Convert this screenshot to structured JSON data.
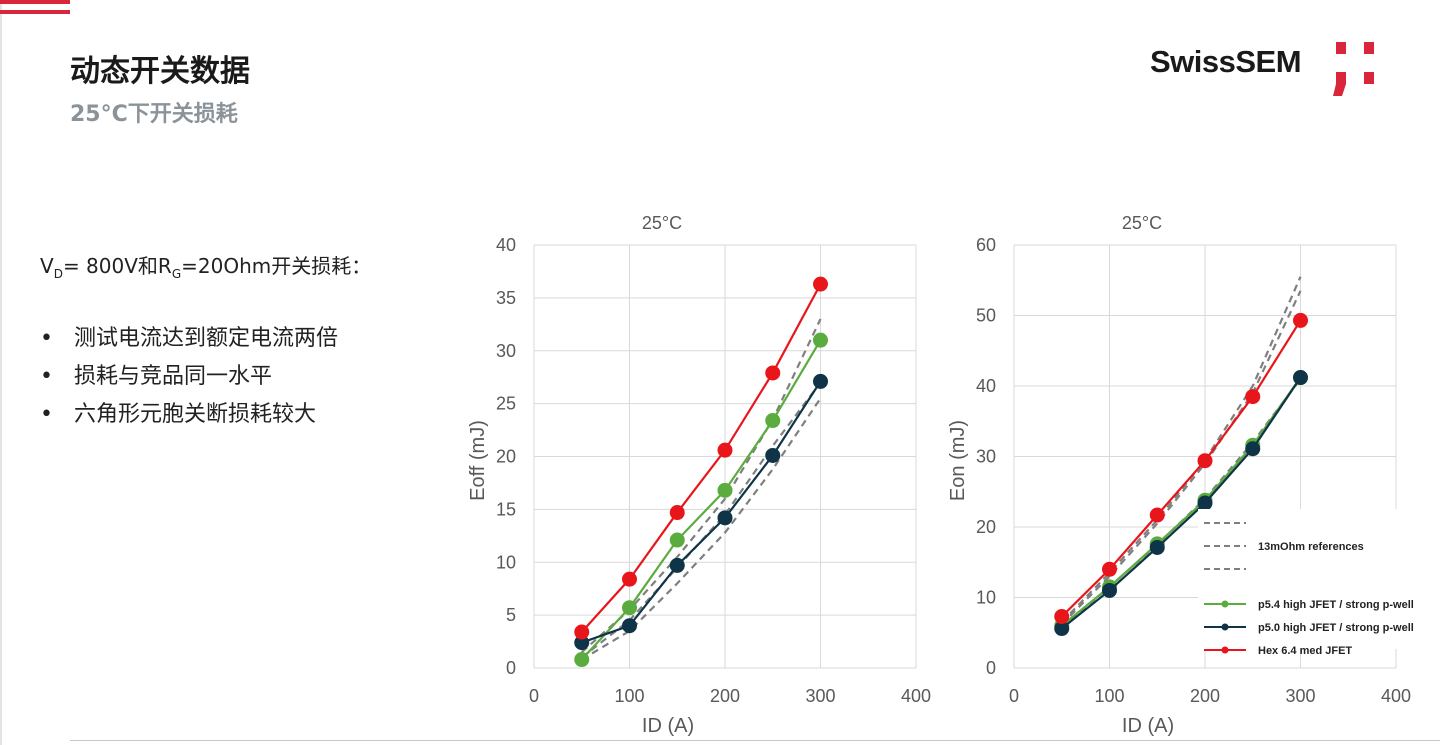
{
  "slide": {
    "title": "动态开关数据",
    "subtitle": "25°C下开关损耗",
    "brand": "SwissSEM",
    "conditions": {
      "v": "V",
      "v_sub": "D",
      "mid": "= 800V和R",
      "r_sub": "G",
      "rest": "=20Ohm开关损耗："
    },
    "bullet_marker": "•",
    "bullets": [
      "测试电流达到额定电流两倍",
      "损耗与竞品同一水平",
      "六角形元胞关断损耗较大"
    ]
  },
  "colors": {
    "green": "#5aac3e",
    "navy": "#0f3447",
    "red": "#e8161b",
    "reference": "#7f7f7f",
    "accent": "#d9263a"
  },
  "chart_data": [
    {
      "type": "line",
      "title": "25°C",
      "xlabel": "ID (A)",
      "ylabel": "Eoff (mJ)",
      "xlim": [
        0,
        400
      ],
      "ylim": [
        0,
        40
      ],
      "xticks": [
        0,
        100,
        200,
        300,
        400
      ],
      "yticks": [
        0,
        5,
        10,
        15,
        20,
        25,
        30,
        35,
        40
      ],
      "grid": true,
      "x": [
        50,
        100,
        150,
        200,
        250,
        300
      ],
      "series": [
        {
          "color": "#5aac3e",
          "values": [
            0.8,
            5.7,
            12.1,
            16.8,
            23.4,
            31.0
          ]
        },
        {
          "color": "#0f3447",
          "values": [
            2.4,
            4.0,
            9.7,
            14.2,
            20.1,
            27.1
          ]
        },
        {
          "color": "#e8161b",
          "values": [
            3.4,
            8.4,
            14.7,
            20.6,
            27.9,
            36.3
          ]
        }
      ],
      "references": [
        {
          "values": [
            1.5,
            5.5,
            10.5,
            16.0,
            23.5,
            33.0
          ]
        },
        {
          "values": [
            1.0,
            4.5,
            9.5,
            14.5,
            21.0,
            27.0
          ]
        },
        {
          "values": [
            0.8,
            3.5,
            8.0,
            12.8,
            18.8,
            25.5
          ]
        }
      ]
    },
    {
      "type": "line",
      "title": "25°C",
      "xlabel": "ID (A)",
      "ylabel": "Eon (mJ)",
      "xlim": [
        0,
        400
      ],
      "ylim": [
        0,
        60
      ],
      "xticks": [
        0,
        100,
        200,
        300,
        400
      ],
      "yticks": [
        0,
        10,
        20,
        30,
        40,
        50,
        60
      ],
      "grid": true,
      "legend_position": "bottom-right",
      "x": [
        50,
        100,
        150,
        200,
        250,
        300
      ],
      "series": [
        {
          "name": "p5.4 high JFET / strong p-well",
          "color": "#5aac3e",
          "values": [
            6.0,
            11.5,
            17.6,
            23.8,
            31.6,
            41.2
          ]
        },
        {
          "name": "p5.0 high JFET / strong p-well",
          "color": "#0f3447",
          "values": [
            5.6,
            11.0,
            17.1,
            23.4,
            31.1,
            41.2
          ]
        },
        {
          "name": "Hex 6.4 med JFET",
          "color": "#e8161b",
          "values": [
            7.3,
            14.0,
            21.7,
            29.4,
            38.5,
            49.3
          ]
        }
      ],
      "reference_label": "13mOhm references",
      "references": [
        {
          "values": [
            6.5,
            13.5,
            21.0,
            29.5,
            40.0,
            55.5
          ]
        },
        {
          "values": [
            6.2,
            13.0,
            20.5,
            29.0,
            39.0,
            53.5
          ]
        },
        {
          "values": [
            5.8,
            11.5,
            17.5,
            24.0,
            32.0,
            41.0
          ]
        }
      ]
    }
  ]
}
